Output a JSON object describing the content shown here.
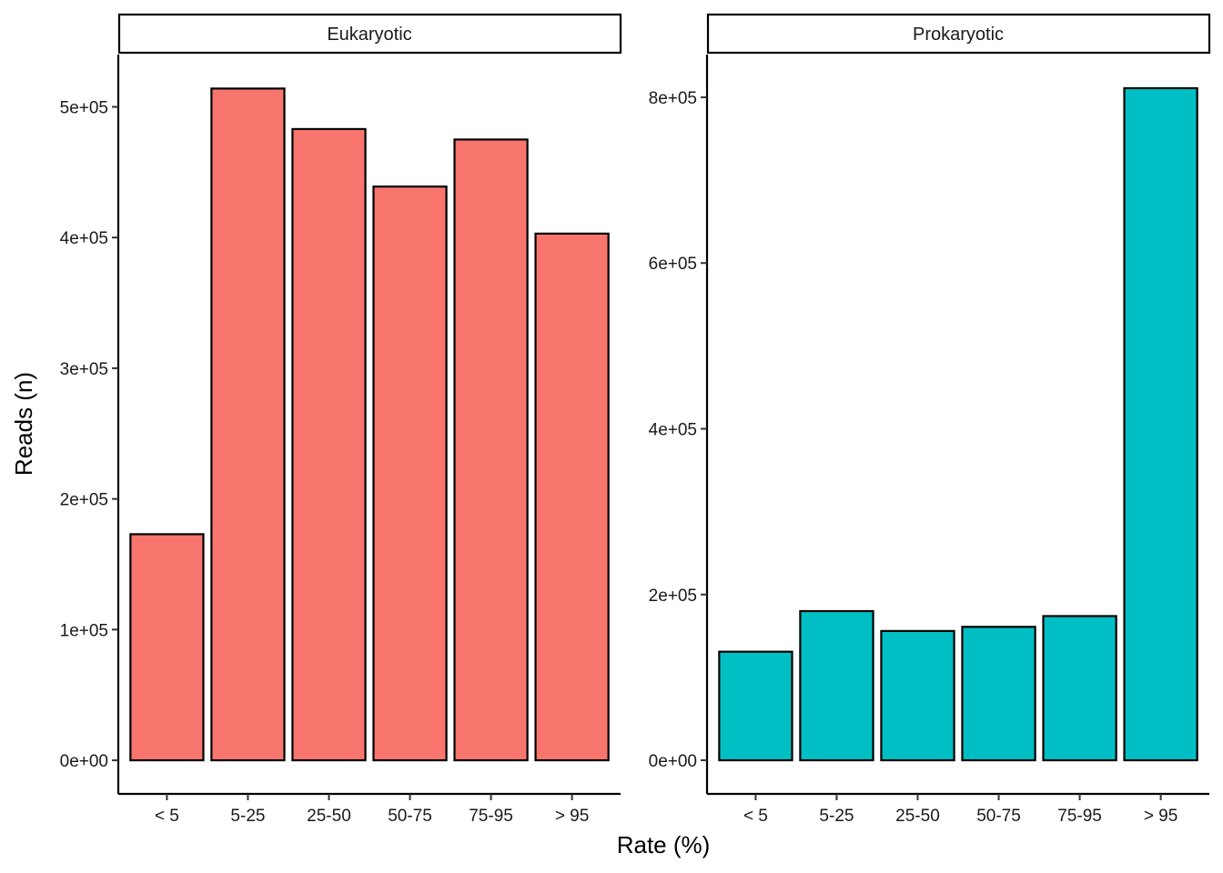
{
  "chart_data": {
    "type": "bar",
    "xlabel": "Rate (%)",
    "ylabel": "Reads (n)",
    "categories": [
      "< 5",
      "5-25",
      "25-50",
      "50-75",
      "75-95",
      "> 95"
    ],
    "panels": [
      {
        "title": "Eukaryotic",
        "color": "#F8766D",
        "values": [
          173000,
          514000,
          483000,
          439000,
          475000,
          403000
        ],
        "ylim": [
          -25700,
          540000
        ],
        "yticks": [
          0,
          100000,
          200000,
          300000,
          400000,
          500000
        ],
        "ytick_labels": [
          "0e+00",
          "1e+05",
          "2e+05",
          "3e+05",
          "4e+05",
          "5e+05"
        ]
      },
      {
        "title": "Prokaryotic",
        "color": "#00BFC4",
        "values": [
          131000,
          180000,
          156000,
          161000,
          174000,
          811000
        ],
        "ylim": [
          -40550,
          851550
        ],
        "yticks": [
          0,
          200000,
          400000,
          600000,
          800000
        ],
        "ytick_labels": [
          "0e+00",
          "2e+05",
          "4e+05",
          "6e+05",
          "8e+05"
        ]
      }
    ]
  }
}
